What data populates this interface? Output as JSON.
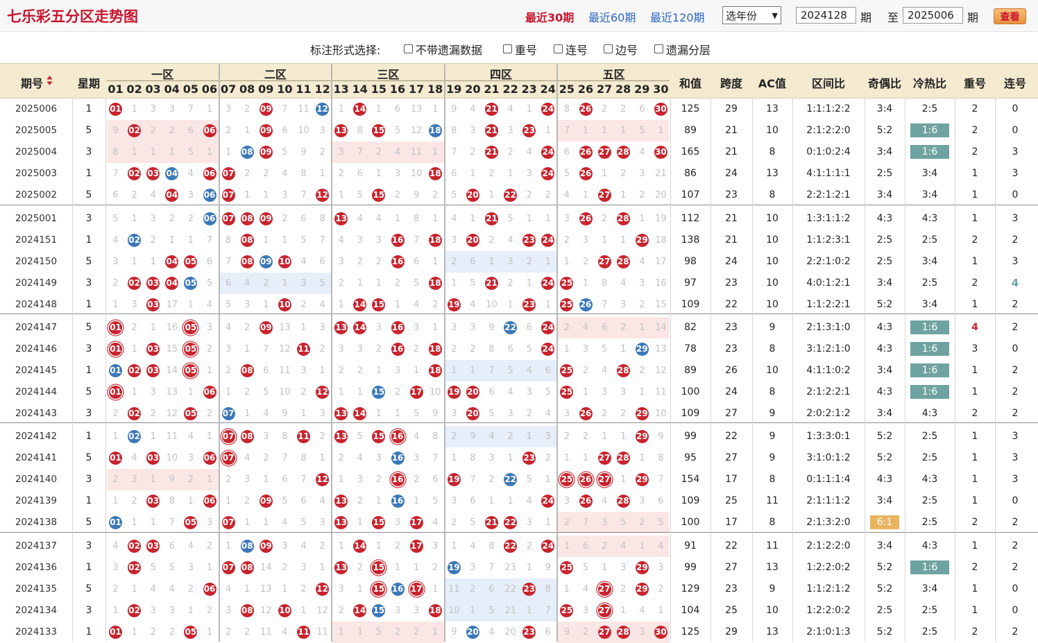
{
  "header": {
    "title": "七乐彩五分区走势图",
    "period_links": [
      "最近30期",
      "最近60期",
      "最近120期"
    ],
    "year_select": "选年份",
    "from_issue": "2024128",
    "issue_unit": "期",
    "to_label": "至",
    "to_issue": "2025006",
    "query_label": "查看"
  },
  "options": {
    "label": "标注形式选择:",
    "items": [
      "不带遗漏数据",
      "重号",
      "连号",
      "边号",
      "遗漏分层"
    ]
  },
  "table_header": {
    "issue": "期号",
    "weekday": "星期",
    "zones": [
      "一区",
      "二区",
      "三区",
      "四区",
      "五区"
    ],
    "numbers": [
      "01",
      "02",
      "03",
      "04",
      "05",
      "06",
      "07",
      "08",
      "09",
      "10",
      "11",
      "12",
      "13",
      "14",
      "15",
      "16",
      "17",
      "18",
      "19",
      "20",
      "21",
      "22",
      "23",
      "24",
      "25",
      "26",
      "27",
      "28",
      "29",
      "30"
    ],
    "stats": [
      "和值",
      "跨度",
      "AC值",
      "区间比",
      "奇偶比",
      "冷热比",
      "重号",
      "连号"
    ]
  },
  "colors": {
    "red": "#c8242e",
    "blue": "#3b78b8",
    "teal": "#6fa3a1",
    "orange": "#e8b45e",
    "header_bg": "#f4ead0",
    "title": "#c8152d"
  },
  "rows": [
    {
      "issue": "2025006",
      "wk": "1",
      "cells": [
        "R",
        "1",
        "3",
        "3",
        "7",
        "1",
        "3",
        "2",
        "R",
        "7",
        "11",
        "B",
        "1",
        "R",
        "1",
        "6",
        "13",
        "1",
        "9",
        "4",
        "R",
        "4",
        "1",
        "R",
        "8",
        "R",
        "2",
        "2",
        "6",
        "R"
      ],
      "sum": "125",
      "span": "29",
      "ac": "13",
      "zone": "1:1:1:2:2",
      "oe": "3:4",
      "ch": "2:5",
      "rep": "2",
      "con": "0"
    },
    {
      "issue": "2025005",
      "wk": "5",
      "cells": [
        "9",
        "R",
        "2",
        "2",
        "6",
        "R",
        "2",
        "1",
        "R",
        "6",
        "10",
        "3",
        "R",
        "8",
        "R",
        "5",
        "12",
        "B",
        "8",
        "3",
        "R",
        "3",
        "R",
        "1",
        "7",
        "1",
        "1",
        "1",
        "5",
        "1"
      ],
      "sum": "89",
      "span": "21",
      "ac": "10",
      "zone": "2:1:2:2:0",
      "oe": "5:2",
      "ch": "1:6",
      "chhl": "teal",
      "rep": "2",
      "con": "0",
      "shade": [
        [
          0,
          5,
          "red"
        ],
        [
          24,
          29,
          "red"
        ]
      ]
    },
    {
      "issue": "2025004",
      "wk": "3",
      "cells": [
        "8",
        "1",
        "1",
        "1",
        "5",
        "1",
        "1",
        "B",
        "R",
        "5",
        "9",
        "2",
        "3",
        "7",
        "2",
        "4",
        "11",
        "1",
        "7",
        "2",
        "R",
        "2",
        "4",
        "R",
        "6",
        "R",
        "R",
        "R",
        "4",
        "R"
      ],
      "sum": "165",
      "span": "21",
      "ac": "8",
      "zone": "0:1:0:2:4",
      "oe": "3:4",
      "ch": "1:6",
      "chhl": "teal",
      "rep": "2",
      "con": "3",
      "shade": [
        [
          0,
          5,
          "red"
        ],
        [
          12,
          17,
          "red"
        ]
      ]
    },
    {
      "issue": "2025003",
      "wk": "1",
      "cells": [
        "7",
        "R",
        "R",
        "B",
        "4",
        "R",
        "R",
        "2",
        "2",
        "4",
        "8",
        "1",
        "2",
        "6",
        "1",
        "3",
        "10",
        "R",
        "6",
        "1",
        "2",
        "1",
        "3",
        "R",
        "5",
        "R",
        "1",
        "2",
        "3",
        "21"
      ],
      "sum": "86",
      "span": "24",
      "ac": "13",
      "zone": "4:1:1:1:1",
      "oe": "2:5",
      "ch": "3:4",
      "rep": "1",
      "con": "3"
    },
    {
      "issue": "2025002",
      "wk": "5",
      "cells": [
        "6",
        "2",
        "4",
        "R",
        "3",
        "B",
        "R",
        "1",
        "1",
        "3",
        "7",
        "R",
        "1",
        "5",
        "R",
        "2",
        "9",
        "2",
        "5",
        "R",
        "1",
        "R",
        "2",
        "2",
        "4",
        "1",
        "R",
        "1",
        "2",
        "20"
      ],
      "sum": "107",
      "span": "23",
      "ac": "8",
      "zone": "2:2:1:2:1",
      "oe": "3:4",
      "ch": "3:4",
      "rep": "1",
      "con": "0"
    },
    {
      "issue": "2025001",
      "wk": "3",
      "cells": [
        "5",
        "1",
        "3",
        "2",
        "2",
        "B",
        "R",
        "R",
        "R",
        "2",
        "6",
        "8",
        "R",
        "4",
        "4",
        "1",
        "8",
        "1",
        "4",
        "1",
        "R",
        "5",
        "1",
        "1",
        "3",
        "R",
        "2",
        "R",
        "1",
        "19"
      ],
      "sum": "112",
      "span": "21",
      "ac": "10",
      "zone": "1:3:1:1:2",
      "oe": "4:3",
      "ch": "4:3",
      "rep": "1",
      "con": "3"
    },
    {
      "issue": "2024151",
      "wk": "1",
      "cells": [
        "4",
        "B",
        "2",
        "1",
        "1",
        "7",
        "8",
        "R",
        "1",
        "1",
        "5",
        "7",
        "4",
        "3",
        "3",
        "R",
        "7",
        "R",
        "3",
        "R",
        "2",
        "4",
        "R",
        "R",
        "2",
        "3",
        "1",
        "1",
        "R",
        "18"
      ],
      "sum": "138",
      "span": "21",
      "ac": "10",
      "zone": "1:1:2:3:1",
      "oe": "2:5",
      "ch": "2:5",
      "rep": "2",
      "con": "2"
    },
    {
      "issue": "2024150",
      "wk": "5",
      "cells": [
        "3",
        "1",
        "1",
        "R",
        "R",
        "6",
        "7",
        "R",
        "B",
        "R",
        "4",
        "6",
        "3",
        "2",
        "2",
        "R",
        "6",
        "1",
        "2",
        "6",
        "1",
        "3",
        "2",
        "1",
        "1",
        "2",
        "R",
        "R",
        "4",
        "17"
      ],
      "sum": "98",
      "span": "24",
      "ac": "10",
      "zone": "2:2:1:0:2",
      "oe": "2:5",
      "ch": "3:4",
      "rep": "1",
      "con": "3",
      "shade": [
        [
          18,
          23,
          "blue"
        ]
      ]
    },
    {
      "issue": "2024149",
      "wk": "3",
      "cells": [
        "2",
        "R",
        "R",
        "R",
        "B",
        "5",
        "6",
        "4",
        "2",
        "1",
        "3",
        "5",
        "2",
        "1",
        "1",
        "2",
        "5",
        "R",
        "1",
        "5",
        "R",
        "2",
        "1",
        "R",
        "R",
        "1",
        "8",
        "4",
        "3",
        "16"
      ],
      "sum": "97",
      "span": "23",
      "ac": "10",
      "zone": "4:0:1:2:1",
      "oe": "3:4",
      "ch": "2:5",
      "rep": "2",
      "con": "4",
      "conhl": "teal",
      "shade": [
        [
          6,
          11,
          "blue"
        ]
      ]
    },
    {
      "issue": "2024148",
      "wk": "1",
      "cells": [
        "1",
        "3",
        "R",
        "17",
        "1",
        "4",
        "5",
        "3",
        "1",
        "R",
        "2",
        "4",
        "1",
        "R",
        "R",
        "1",
        "4",
        "2",
        "R",
        "4",
        "10",
        "1",
        "R",
        "1",
        "R",
        "B",
        "7",
        "3",
        "2",
        "15"
      ],
      "sum": "109",
      "span": "22",
      "ac": "10",
      "zone": "1:1:2:2:1",
      "oe": "5:2",
      "ch": "3:4",
      "rep": "1",
      "con": "2"
    },
    {
      "issue": "2024147",
      "wk": "5",
      "cells": [
        "r",
        "2",
        "1",
        "16",
        "r",
        "3",
        "4",
        "2",
        "R",
        "13",
        "1",
        "3",
        "R",
        "R",
        "3",
        "R",
        "3",
        "1",
        "3",
        "3",
        "9",
        "B",
        "6",
        "R",
        "2",
        "4",
        "6",
        "2",
        "1",
        "14"
      ],
      "sum": "82",
      "span": "23",
      "ac": "9",
      "zone": "2:1:3:1:0",
      "oe": "4:3",
      "ch": "1:6",
      "chhl": "teal",
      "rep": "4",
      "rephl": "red",
      "con": "2",
      "shade": [
        [
          24,
          29,
          "red"
        ]
      ]
    },
    {
      "issue": "2024146",
      "wk": "3",
      "cells": [
        "r",
        "1",
        "R",
        "15",
        "r",
        "2",
        "3",
        "1",
        "7",
        "12",
        "R",
        "2",
        "3",
        "3",
        "2",
        "R",
        "2",
        "R",
        "2",
        "2",
        "8",
        "6",
        "5",
        "R",
        "1",
        "3",
        "5",
        "1",
        "B",
        "13"
      ],
      "sum": "78",
      "span": "23",
      "ac": "8",
      "zone": "3:1:2:1:0",
      "oe": "4:3",
      "ch": "1:6",
      "chhl": "teal",
      "rep": "3",
      "con": "0"
    },
    {
      "issue": "2024145",
      "wk": "1",
      "cells": [
        "B",
        "R",
        "R",
        "14",
        "r",
        "1",
        "2",
        "R",
        "6",
        "11",
        "3",
        "1",
        "2",
        "2",
        "1",
        "3",
        "1",
        "R",
        "1",
        "1",
        "7",
        "5",
        "4",
        "6",
        "R",
        "2",
        "4",
        "R",
        "2",
        "12"
      ],
      "sum": "89",
      "span": "26",
      "ac": "10",
      "zone": "4:1:1:0:2",
      "oe": "3:4",
      "ch": "1:6",
      "chhl": "teal",
      "rep": "1",
      "con": "2",
      "shade": [
        [
          18,
          23,
          "blue"
        ]
      ]
    },
    {
      "issue": "2024144",
      "wk": "5",
      "cells": [
        "r",
        "1",
        "3",
        "13",
        "1",
        "R",
        "1",
        "2",
        "5",
        "10",
        "2",
        "R",
        "1",
        "1",
        "B",
        "2",
        "R",
        "10",
        "R",
        "R",
        "6",
        "4",
        "3",
        "5",
        "R",
        "1",
        "3",
        "3",
        "1",
        "11"
      ],
      "sum": "100",
      "span": "24",
      "ac": "8",
      "zone": "2:1:2:2:1",
      "oe": "4:3",
      "ch": "1:6",
      "chhl": "teal",
      "rep": "1",
      "con": "2"
    },
    {
      "issue": "2024143",
      "wk": "3",
      "cells": [
        "2",
        "R",
        "2",
        "12",
        "R",
        "2",
        "B",
        "1",
        "4",
        "9",
        "1",
        "3",
        "R",
        "R",
        "1",
        "1",
        "5",
        "9",
        "3",
        "R",
        "5",
        "3",
        "2",
        "4",
        "3",
        "R",
        "2",
        "2",
        "R",
        "10"
      ],
      "sum": "109",
      "span": "27",
      "ac": "9",
      "zone": "2:0:2:1:2",
      "oe": "3:4",
      "ch": "4:3",
      "rep": "2",
      "con": "2"
    },
    {
      "issue": "2024142",
      "wk": "1",
      "cells": [
        "1",
        "B",
        "1",
        "11",
        "4",
        "1",
        "r",
        "R",
        "3",
        "8",
        "R",
        "2",
        "R",
        "5",
        "R",
        "r",
        "4",
        "8",
        "2",
        "9",
        "4",
        "2",
        "1",
        "3",
        "2",
        "2",
        "1",
        "1",
        "R",
        "9"
      ],
      "sum": "99",
      "span": "22",
      "ac": "9",
      "zone": "1:3:3:0:1",
      "oe": "5:2",
      "ch": "2:5",
      "rep": "1",
      "con": "3",
      "shade": [
        [
          18,
          23,
          "blue"
        ]
      ]
    },
    {
      "issue": "2024141",
      "wk": "5",
      "cells": [
        "R",
        "4",
        "R",
        "10",
        "3",
        "R",
        "r",
        "4",
        "2",
        "7",
        "8",
        "1",
        "2",
        "4",
        "3",
        "B",
        "3",
        "7",
        "1",
        "8",
        "3",
        "1",
        "R",
        "2",
        "1",
        "1",
        "R",
        "R",
        "1",
        "8"
      ],
      "sum": "95",
      "span": "27",
      "ac": "9",
      "zone": "3:1:0:1:2",
      "oe": "5:2",
      "ch": "2:5",
      "rep": "1",
      "con": "3"
    },
    {
      "issue": "2024140",
      "wk": "3",
      "cells": [
        "2",
        "3",
        "1",
        "9",
        "2",
        "1",
        "2",
        "3",
        "1",
        "6",
        "7",
        "R",
        "1",
        "3",
        "2",
        "r",
        "2",
        "6",
        "R",
        "7",
        "2",
        "B",
        "5",
        "1",
        "r",
        "r",
        "r",
        "1",
        "R",
        "7"
      ],
      "sum": "154",
      "span": "17",
      "ac": "8",
      "zone": "0:1:1:1:4",
      "oe": "4:3",
      "ch": "4:3",
      "rep": "1",
      "con": "3",
      "shade": [
        [
          0,
          5,
          "red"
        ]
      ]
    },
    {
      "issue": "2024139",
      "wk": "1",
      "cells": [
        "1",
        "2",
        "R",
        "8",
        "1",
        "R",
        "1",
        "2",
        "R",
        "5",
        "6",
        "4",
        "R",
        "2",
        "1",
        "B",
        "1",
        "5",
        "3",
        "6",
        "1",
        "1",
        "4",
        "R",
        "3",
        "R",
        "4",
        "R",
        "3",
        "6"
      ],
      "sum": "109",
      "span": "25",
      "ac": "11",
      "zone": "2:1:1:1:2",
      "oe": "3:4",
      "ch": "2:5",
      "rep": "1",
      "con": "0"
    },
    {
      "issue": "2024138",
      "wk": "5",
      "cells": [
        "B",
        "1",
        "1",
        "7",
        "R",
        "3",
        "R",
        "1",
        "1",
        "4",
        "5",
        "3",
        "R",
        "1",
        "R",
        "3",
        "R",
        "4",
        "2",
        "5",
        "R",
        "R",
        "3",
        "1",
        "2",
        "7",
        "3",
        "5",
        "2",
        "5"
      ],
      "sum": "100",
      "span": "17",
      "ac": "8",
      "zone": "2:1:3:2:0",
      "oe": "6:1",
      "oehl": "orange",
      "ch": "2:5",
      "rep": "2",
      "con": "2",
      "shade": [
        [
          24,
          29,
          "red"
        ]
      ]
    },
    {
      "issue": "2024137",
      "wk": "3",
      "cells": [
        "4",
        "R",
        "R",
        "6",
        "4",
        "2",
        "1",
        "B",
        "R",
        "3",
        "4",
        "2",
        "1",
        "R",
        "1",
        "2",
        "R",
        "3",
        "1",
        "4",
        "8",
        "R",
        "2",
        "R",
        "1",
        "6",
        "2",
        "4",
        "1",
        "4"
      ],
      "sum": "91",
      "span": "22",
      "ac": "11",
      "zone": "2:1:2:2:0",
      "oe": "3:4",
      "ch": "4:3",
      "rep": "1",
      "con": "2",
      "shade": [
        [
          24,
          29,
          "red"
        ]
      ]
    },
    {
      "issue": "2024136",
      "wk": "1",
      "cells": [
        "3",
        "R",
        "5",
        "5",
        "3",
        "1",
        "R",
        "R",
        "14",
        "2",
        "3",
        "1",
        "R",
        "2",
        "r",
        "1",
        "1",
        "2",
        "B",
        "3",
        "7",
        "23",
        "1",
        "9",
        "R",
        "5",
        "1",
        "3",
        "R",
        "3"
      ],
      "sum": "99",
      "span": "27",
      "ac": "13",
      "zone": "1:2:2:0:2",
      "oe": "5:2",
      "ch": "1:6",
      "chhl": "teal",
      "rep": "2",
      "con": "2"
    },
    {
      "issue": "2024135",
      "wk": "5",
      "cells": [
        "2",
        "1",
        "4",
        "4",
        "2",
        "R",
        "4",
        "1",
        "13",
        "1",
        "2",
        "R",
        "3",
        "1",
        "r",
        "B",
        "r",
        "1",
        "11",
        "2",
        "6",
        "22",
        "R",
        "8",
        "1",
        "4",
        "r",
        "2",
        "R",
        "2"
      ],
      "sum": "129",
      "span": "23",
      "ac": "9",
      "zone": "1:1:2:1:2",
      "oe": "5:2",
      "ch": "3:4",
      "rep": "1",
      "con": "0",
      "shade": [
        [
          18,
          23,
          "blue"
        ]
      ]
    },
    {
      "issue": "2024134",
      "wk": "3",
      "cells": [
        "1",
        "R",
        "3",
        "3",
        "1",
        "2",
        "3",
        "R",
        "12",
        "R",
        "1",
        "12",
        "2",
        "R",
        "B",
        "3",
        "3",
        "R",
        "10",
        "1",
        "5",
        "21",
        "1",
        "7",
        "R",
        "3",
        "r",
        "1",
        "4",
        "1"
      ],
      "sum": "104",
      "span": "25",
      "ac": "10",
      "zone": "1:2:2:0:2",
      "oe": "2:5",
      "ch": "2:5",
      "rep": "1",
      "con": "0",
      "shade": [
        [
          18,
          23,
          "blue"
        ]
      ]
    },
    {
      "issue": "2024133",
      "wk": "1",
      "cells": [
        "R",
        "1",
        "2",
        "2",
        "R",
        "1",
        "2",
        "2",
        "11",
        "4",
        "R",
        "11",
        "1",
        "1",
        "5",
        "2",
        "2",
        "1",
        "9",
        "B",
        "4",
        "20",
        "R",
        "6",
        "9",
        "2",
        "R",
        "R",
        "3",
        "R"
      ],
      "sum": "125",
      "span": "29",
      "ac": "13",
      "zone": "2:1:0:1:3",
      "oe": "5:2",
      "ch": "2:5",
      "rep": "2",
      "con": "2",
      "shade": [
        [
          12,
          17,
          "red"
        ],
        [
          24,
          29,
          "red"
        ]
      ]
    }
  ]
}
